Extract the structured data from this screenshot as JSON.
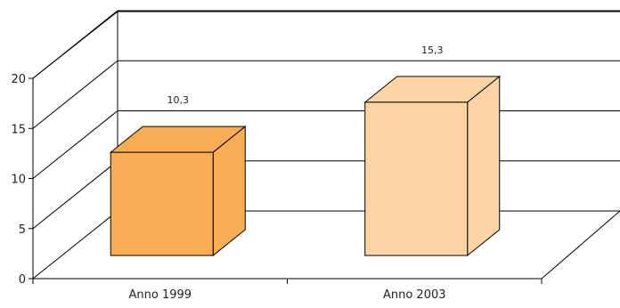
{
  "chart_data": {
    "type": "bar",
    "style": "3d",
    "title": "",
    "xlabel": "",
    "ylabel": "",
    "categories": [
      "Anno 1999",
      "Anno 2003"
    ],
    "values": [
      10.3,
      15.3
    ],
    "data_labels": [
      "10,3",
      "15,3"
    ],
    "ylim": [
      0,
      20
    ],
    "yticks": [
      0,
      5,
      10,
      15,
      20
    ],
    "ytick_labels": [
      "0",
      "5",
      "10",
      "15",
      "20"
    ],
    "grid": true,
    "legend": "none"
  },
  "colors": {
    "bars": [
      "#f9ae56",
      "#fdd5a4"
    ],
    "outline": "#000000",
    "grid": "#000000",
    "background": "#ffffff"
  }
}
